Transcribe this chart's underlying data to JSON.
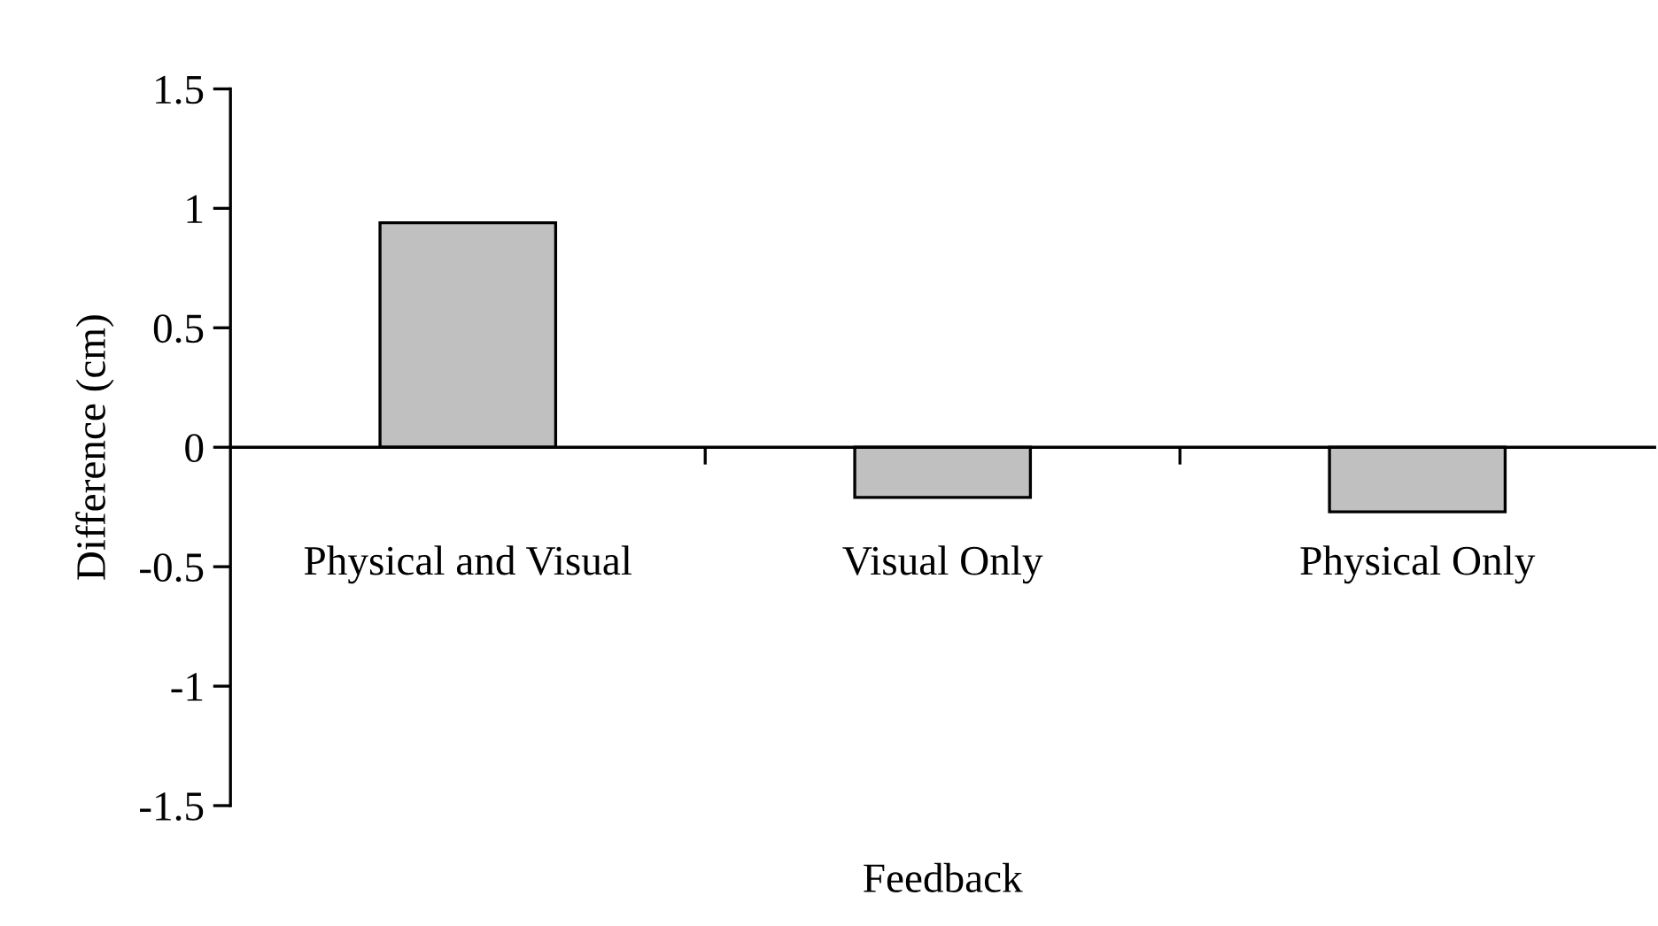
{
  "chart_data": {
    "type": "bar",
    "categories": [
      "Physical and Visual",
      "Visual Only",
      "Physical Only"
    ],
    "values": [
      0.94,
      -0.21,
      -0.27
    ],
    "color": "#c0c0c0",
    "xlabel": "Feedback",
    "ylabel": "Difference (cm)",
    "ylim": [
      -1.5,
      1.5
    ],
    "yticks": [
      -1.5,
      -1,
      -0.5,
      0,
      0.5,
      1,
      1.5
    ],
    "legend": false
  }
}
